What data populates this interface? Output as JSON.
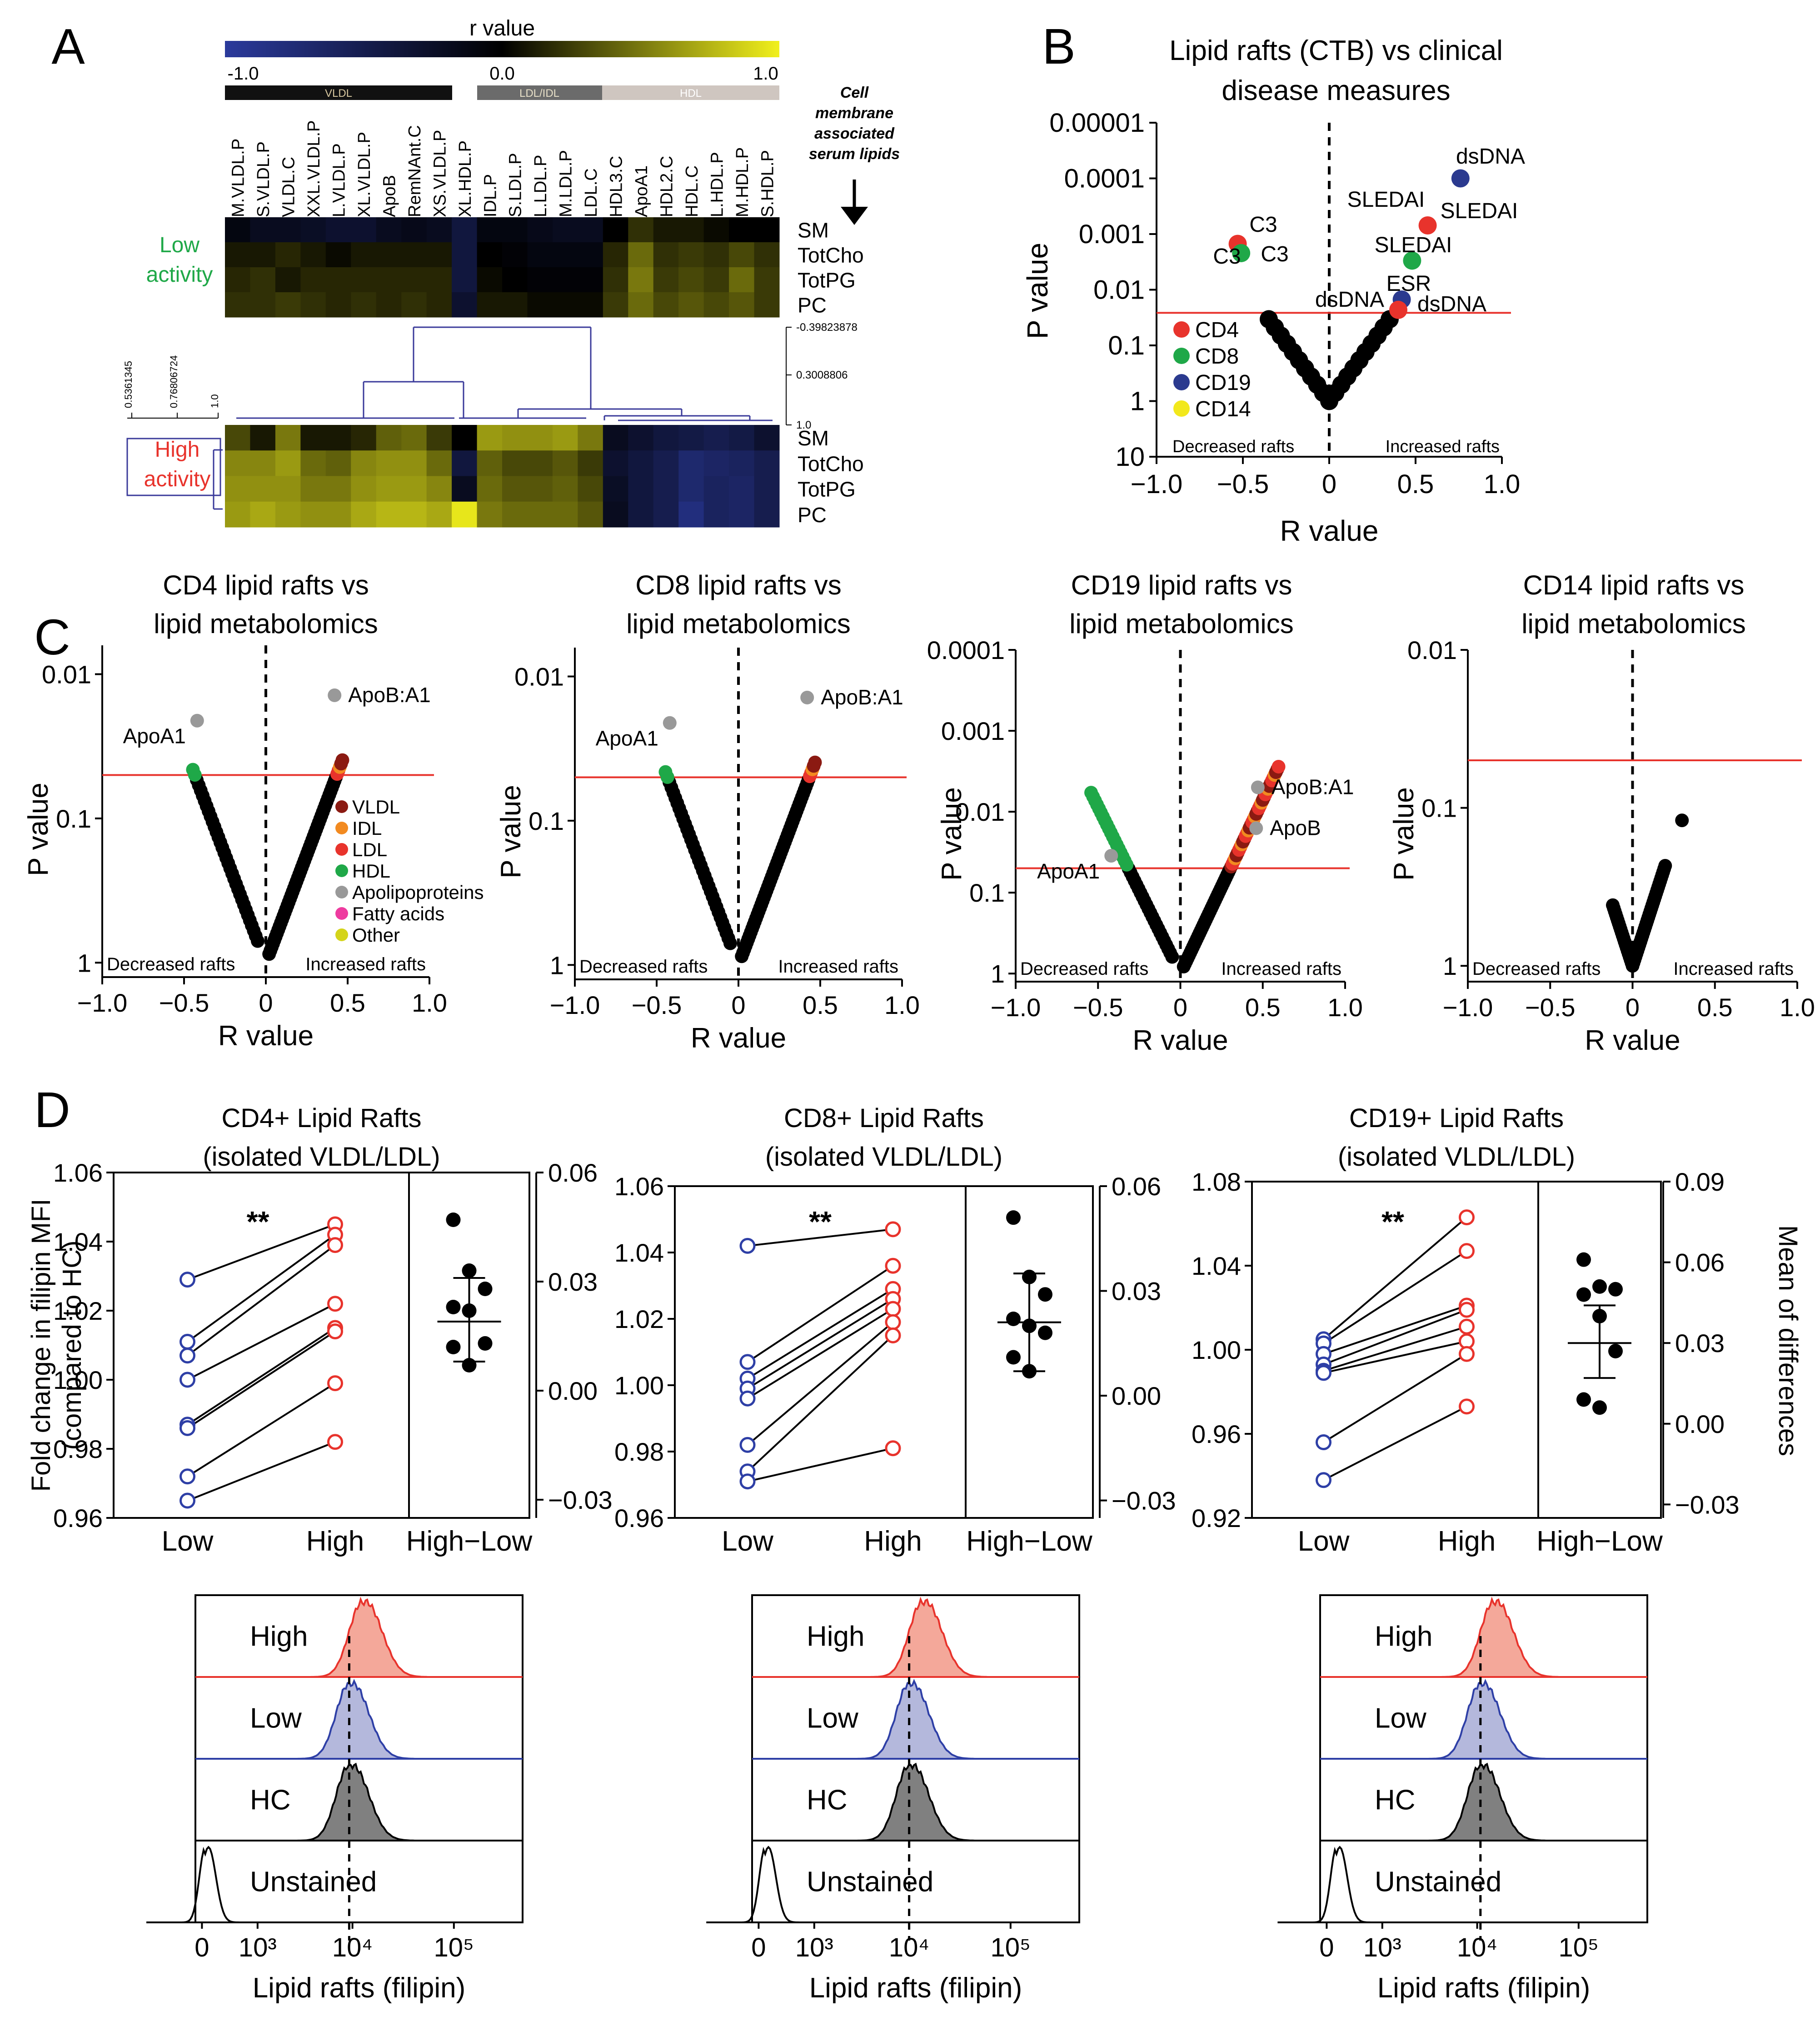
{
  "colors": {
    "cd4": "#e8332c",
    "cd8": "#1fa848",
    "cd19": "#2b3a8f",
    "cd14": "#f2e81c",
    "threshold": "#e8332c",
    "low": "#2e3fa6",
    "high": "#e8332c",
    "hm_low": "#2b3a9c",
    "hm_high": "#f1f01c",
    "vldl": "#8b1a12",
    "idl": "#f28a20",
    "ldl": "#e8332c",
    "hdl": "#1fa848",
    "apolipo": "#999999",
    "fatty": "#ee3b9f",
    "other": "#d4d41a"
  },
  "panels": {
    "A": "A",
    "B": "B",
    "C": "C",
    "D": "D"
  },
  "panelA": {
    "scale_title": "r value",
    "scale_ticks": [
      "-1.0",
      "0.0",
      "1.0"
    ],
    "class_bars": [
      "VLDL",
      "LDL/IDL",
      "HDL"
    ],
    "columns": [
      "M.VLDL.P",
      "S.VLDL.P",
      "VLDL.C",
      "XXL.VLDL.P",
      "L.VLDL.P",
      "XL.VLDL.P",
      "ApoB",
      "RemNAnt.C",
      "XS.VLDL.P",
      "XL.HDL.P",
      "IDL.P",
      "S.LDL.P",
      "L.LDL.P",
      "M.LDL.P",
      "LDL.C",
      "HDL3.C",
      "ApoA1",
      "HDL2.C",
      "HDL.C",
      "L.HDL.P",
      "M.HDL.P",
      "S.HDL.P"
    ],
    "rows": [
      "SM",
      "TotCho",
      "TotPG",
      "PC"
    ],
    "side_note": [
      "Cell",
      "membrane",
      "associated",
      "serum lipids"
    ],
    "groups": {
      "low": "Low activity",
      "high": "High activity"
    },
    "group_low_lines": [
      "Low",
      "activity"
    ],
    "group_high_lines": [
      "High",
      "activity"
    ],
    "dendro_right": [
      "-0.39823878",
      "0.3008806",
      "1.0"
    ],
    "dendro_left": [
      "0.5361345",
      "0.76806724",
      "1.0"
    ],
    "low_matrix": [
      [
        0.45,
        0.4,
        0.4,
        0.38,
        0.35,
        0.35,
        0.4,
        0.42,
        0.4,
        0.3,
        0.45,
        0.45,
        0.42,
        0.4,
        0.4,
        0.5,
        0.6,
        0.55,
        0.55,
        0.52,
        0.5,
        0.5
      ],
      [
        0.55,
        0.55,
        0.58,
        0.55,
        0.52,
        0.55,
        0.55,
        0.55,
        0.55,
        0.3,
        0.5,
        0.48,
        0.45,
        0.45,
        0.45,
        0.58,
        0.72,
        0.6,
        0.62,
        0.6,
        0.65,
        0.6
      ],
      [
        0.58,
        0.6,
        0.55,
        0.58,
        0.58,
        0.58,
        0.58,
        0.58,
        0.58,
        0.3,
        0.52,
        0.5,
        0.48,
        0.48,
        0.48,
        0.6,
        0.75,
        0.62,
        0.65,
        0.62,
        0.72,
        0.62
      ],
      [
        0.6,
        0.6,
        0.62,
        0.6,
        0.58,
        0.6,
        0.58,
        0.6,
        0.58,
        0.35,
        0.55,
        0.55,
        0.52,
        0.52,
        0.52,
        0.62,
        0.72,
        0.65,
        0.68,
        0.65,
        0.68,
        0.62
      ]
    ],
    "high_matrix": [
      [
        0.65,
        0.55,
        0.75,
        0.55,
        0.55,
        0.58,
        0.7,
        0.72,
        0.62,
        0.5,
        0.82,
        0.8,
        0.8,
        0.82,
        0.75,
        0.4,
        0.35,
        0.3,
        0.28,
        0.25,
        0.28,
        0.35
      ],
      [
        0.78,
        0.78,
        0.82,
        0.72,
        0.7,
        0.78,
        0.8,
        0.8,
        0.72,
        0.3,
        0.7,
        0.65,
        0.65,
        0.68,
        0.62,
        0.35,
        0.3,
        0.25,
        0.15,
        0.18,
        0.2,
        0.25
      ],
      [
        0.8,
        0.8,
        0.8,
        0.75,
        0.75,
        0.8,
        0.82,
        0.82,
        0.78,
        0.4,
        0.72,
        0.68,
        0.68,
        0.7,
        0.65,
        0.38,
        0.3,
        0.25,
        0.15,
        0.2,
        0.18,
        0.25
      ],
      [
        0.82,
        0.85,
        0.82,
        0.8,
        0.8,
        0.85,
        0.88,
        0.88,
        0.85,
        0.98,
        0.75,
        0.72,
        0.72,
        0.72,
        0.68,
        0.4,
        0.3,
        0.25,
        0.1,
        0.2,
        0.18,
        0.25
      ]
    ]
  },
  "panelB": {
    "title_lines": [
      "Lipid rafts (CTB) vs clinical",
      "disease measures"
    ],
    "xlabel": "R value",
    "ylabel": "P value",
    "xticks": [
      "−1.0",
      "−0.5",
      "0",
      "0.5",
      "1.0"
    ],
    "yticks": [
      "0.00001",
      "0.0001",
      "0.001",
      "0.01",
      "0.1",
      "1",
      "10"
    ],
    "legend": [
      "CD4",
      "CD8",
      "CD19",
      "CD14"
    ],
    "decreased": "Decreased rafts",
    "increased": "Increased rafts",
    "threshold_p": 0.026,
    "annotations": [
      "dsDNA",
      "SLEDAI",
      "SLEDAI",
      "SLEDAI",
      "C3",
      "C3",
      "C3",
      "ESR",
      "dsDNA",
      "dsDNA"
    ]
  },
  "panelC": [
    {
      "title_lines": [
        "CD4 lipid rafts vs",
        "lipid metabolomics"
      ],
      "yticks": [
        "0.01",
        "0.1",
        "1"
      ],
      "labels": [
        "ApoA1",
        "ApoB:A1"
      ],
      "show_legend": true
    },
    {
      "title_lines": [
        "CD8 lipid rafts vs",
        "lipid metabolomics"
      ],
      "yticks": [
        "0.01",
        "0.1",
        "1"
      ],
      "labels": [
        "ApoA1",
        "ApoB:A1"
      ],
      "show_legend": false
    },
    {
      "title_lines": [
        "CD19 lipid rafts vs",
        "lipid metabolomics"
      ],
      "yticks": [
        "0.0001",
        "0.001",
        "0.01",
        "0.1",
        "1"
      ],
      "labels": [
        "ApoA1",
        "ApoB:A1",
        "ApoB"
      ],
      "show_legend": false
    },
    {
      "title_lines": [
        "CD14 lipid rafts vs",
        "lipid metabolomics"
      ],
      "yticks": [
        "0.01",
        "0.1",
        "1"
      ],
      "labels": [],
      "show_legend": false
    }
  ],
  "panelC_common": {
    "xlabel": "R value",
    "ylabel": "P value",
    "xticks": [
      "−1.0",
      "−0.5",
      "0",
      "0.5",
      "1.0"
    ],
    "decreased": "Decreased rafts",
    "increased": "Increased rafts",
    "legend": [
      "VLDL",
      "IDL",
      "LDL",
      "HDL",
      "Apolipoproteins",
      "Fatty acids",
      "Other"
    ]
  },
  "panelD": {
    "ylabel_lines": [
      "Fold change in filipin MFI",
      "(compared to HC)"
    ],
    "right_ylabel": "Mean of differences",
    "xlabel_hist": "Lipid rafts (filipin)",
    "hist_labels": [
      "High",
      "Low",
      "HC",
      "Unstained"
    ],
    "hist_xticks": [
      "0",
      "10³",
      "10⁴",
      "10⁵"
    ],
    "sig": "**",
    "xcats": [
      "Low",
      "High",
      "High−Low"
    ],
    "plots": [
      {
        "title_lines": [
          "CD4+ Lipid Rafts",
          "(isolated VLDL/LDL)"
        ],
        "left_ticks": [
          "0.96",
          "0.98",
          "1.00",
          "1.02",
          "1.04",
          "1.06"
        ],
        "left_range": [
          0.96,
          1.06
        ],
        "right_ticks": [
          "−0.03",
          "0.00",
          "0.03",
          "0.06"
        ],
        "right_range": [
          -0.035,
          0.06
        ],
        "low": [
          1.029,
          1.011,
          1.007,
          1.0,
          0.987,
          0.986,
          0.972,
          0.965
        ],
        "high": [
          1.045,
          1.042,
          1.039,
          1.022,
          1.015,
          1.014,
          0.999,
          0.982
        ],
        "diffs": [
          0.047,
          0.033,
          0.028,
          0.023,
          0.022,
          0.013,
          0.012,
          0.007
        ],
        "mean": 0.019,
        "sd_hi": 0.031,
        "sd_lo": 0.008
      },
      {
        "title_lines": [
          "CD8+ Lipid Rafts",
          "(isolated VLDL/LDL)"
        ],
        "left_ticks": [
          "0.96",
          "0.98",
          "1.00",
          "1.02",
          "1.04",
          "1.06"
        ],
        "left_range": [
          0.96,
          1.06
        ],
        "right_ticks": [
          "−0.03",
          "0.00",
          "0.03",
          "0.06"
        ],
        "right_range": [
          -0.035,
          0.06
        ],
        "low": [
          1.042,
          1.007,
          1.002,
          0.999,
          0.996,
          0.982,
          0.974,
          0.971
        ],
        "high": [
          1.047,
          1.036,
          1.029,
          1.026,
          1.023,
          1.019,
          1.015,
          0.981
        ],
        "diffs": [
          0.051,
          0.034,
          0.029,
          0.022,
          0.02,
          0.018,
          0.011,
          0.007
        ],
        "mean": 0.021,
        "sd_hi": 0.035,
        "sd_lo": 0.007
      },
      {
        "title_lines": [
          "CD19+ Lipid Rafts",
          "(isolated VLDL/LDL)"
        ],
        "left_ticks": [
          "0.92",
          "0.96",
          "1.00",
          "1.04",
          "1.08"
        ],
        "left_range": [
          0.92,
          1.08
        ],
        "right_ticks": [
          "−0.03",
          "0.00",
          "0.03",
          "0.06",
          "0.09"
        ],
        "right_range": [
          -0.035,
          0.09
        ],
        "low": [
          1.005,
          1.003,
          0.998,
          0.993,
          0.99,
          0.989,
          0.956,
          0.938
        ],
        "high": [
          1.063,
          1.047,
          1.021,
          1.019,
          1.011,
          1.004,
          0.998,
          0.973
        ],
        "diffs": [
          0.061,
          0.051,
          0.05,
          0.048,
          0.04,
          0.027,
          0.009,
          0.006
        ],
        "mean": 0.03,
        "sd_hi": 0.044,
        "sd_lo": 0.017
      }
    ]
  }
}
